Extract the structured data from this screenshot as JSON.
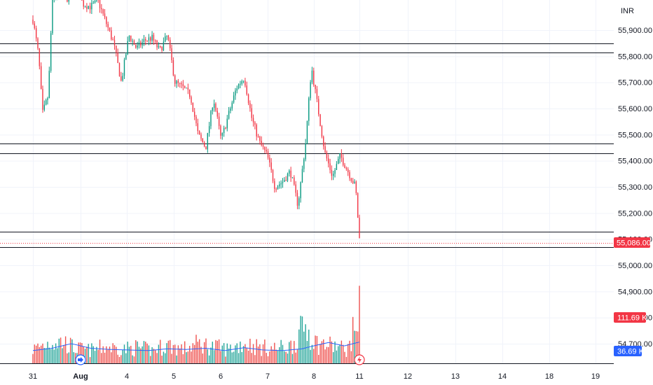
{
  "chart_data": {
    "type": "candlestick",
    "currency": "INR",
    "y_ticks": [
      "55,900.00",
      "55,800.00",
      "55,700.00",
      "55,600.00",
      "55,500.00",
      "55,400.00",
      "55,300.00",
      "55,200.00",
      "55,100.00",
      "55,000.00",
      "54,900.00",
      "54,800.00",
      "54,700.00"
    ],
    "x_ticks": [
      "31",
      "Aug",
      "4",
      "5",
      "6",
      "7",
      "8",
      "11",
      "12",
      "13",
      "14",
      "18",
      "19"
    ],
    "last_price": {
      "value": 55086.0,
      "label": "55,086.00",
      "color": "#f23645"
    },
    "volume_last": {
      "label": "111.69 K",
      "color": "#f23645"
    },
    "volume_ma": {
      "label": "36.69 K",
      "color": "#2962ff"
    },
    "horizontal_levels": [
      55850,
      55815,
      55465,
      55428,
      55128,
      55070
    ],
    "colors": {
      "up": "#089981",
      "down": "#f23645",
      "up_volume": "#26a69a",
      "down_volume": "#ef5350",
      "ma": "#2962ff"
    },
    "price_range": [
      54650,
      56050
    ],
    "price_waypoints": [
      [
        30.5,
        55940
      ],
      [
        30.65,
        55800
      ],
      [
        30.75,
        55580
      ],
      [
        30.9,
        55650
      ],
      [
        31.0,
        56000
      ],
      [
        31.2,
        56060
      ],
      [
        31.4,
        56020
      ],
      [
        31.6,
        56080
      ],
      [
        31.8,
        56000
      ],
      [
        32.0,
        55990
      ],
      [
        32.2,
        56010
      ],
      [
        32.4,
        55930
      ],
      [
        32.6,
        55850
      ],
      [
        32.8,
        55700
      ],
      [
        33.0,
        55880
      ],
      [
        33.2,
        55830
      ],
      [
        33.4,
        55860
      ],
      [
        33.6,
        55870
      ],
      [
        33.8,
        55820
      ],
      [
        34.0,
        55880
      ],
      [
        34.2,
        55700
      ],
      [
        34.4,
        55680
      ],
      [
        34.6,
        55650
      ],
      [
        34.8,
        55500
      ],
      [
        35.0,
        55450
      ],
      [
        35.2,
        55640
      ],
      [
        35.4,
        55480
      ],
      [
        35.6,
        55580
      ],
      [
        35.8,
        55680
      ],
      [
        36.0,
        55720
      ],
      [
        36.2,
        55560
      ],
      [
        36.4,
        55470
      ],
      [
        36.6,
        55420
      ],
      [
        36.8,
        55300
      ],
      [
        37.0,
        55320
      ],
      [
        37.2,
        55360
      ],
      [
        37.4,
        55230
      ],
      [
        37.6,
        55470
      ],
      [
        37.75,
        55760
      ],
      [
        37.9,
        55620
      ],
      [
        38.1,
        55430
      ],
      [
        38.3,
        55340
      ],
      [
        38.5,
        55420
      ],
      [
        38.7,
        55360
      ],
      [
        38.9,
        55300
      ],
      [
        39.0,
        55100
      ]
    ],
    "volume_waypoints": [
      [
        30.5,
        30
      ],
      [
        31.0,
        48
      ],
      [
        31.3,
        45
      ],
      [
        31.6,
        32
      ],
      [
        32.0,
        28
      ],
      [
        32.4,
        36
      ],
      [
        32.8,
        30
      ],
      [
        33.2,
        34
      ],
      [
        33.6,
        28
      ],
      [
        34.0,
        40
      ],
      [
        34.4,
        30
      ],
      [
        34.8,
        42
      ],
      [
        35.2,
        36
      ],
      [
        35.6,
        30
      ],
      [
        36.0,
        44
      ],
      [
        36.4,
        34
      ],
      [
        36.8,
        32
      ],
      [
        37.2,
        36
      ],
      [
        37.6,
        80
      ],
      [
        37.9,
        42
      ],
      [
        38.3,
        38
      ],
      [
        38.7,
        30
      ],
      [
        39.0,
        112
      ]
    ],
    "volume_ma_waypoints": [
      [
        30.5,
        22
      ],
      [
        31.0,
        26
      ],
      [
        31.5,
        34
      ],
      [
        32.0,
        26
      ],
      [
        32.5,
        24
      ],
      [
        33.0,
        23
      ],
      [
        33.5,
        22
      ],
      [
        34.0,
        25
      ],
      [
        34.5,
        24
      ],
      [
        35.0,
        26
      ],
      [
        35.5,
        22
      ],
      [
        36.0,
        27
      ],
      [
        36.5,
        23
      ],
      [
        37.0,
        22
      ],
      [
        37.5,
        25
      ],
      [
        37.8,
        30
      ],
      [
        38.2,
        36
      ],
      [
        38.6,
        30
      ],
      [
        39.0,
        36.69
      ]
    ],
    "volume_max": 150
  }
}
